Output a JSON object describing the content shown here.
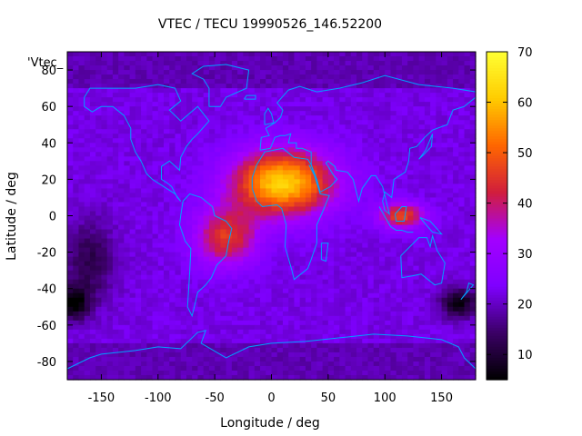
{
  "chart_data": {
    "type": "heatmap",
    "title": "VTEC / TECU 19990526_146.52200",
    "xlabel": "Longitude / deg",
    "ylabel": "Latitude / deg",
    "legend_label": "'Vtec_",
    "xlim": [
      -180,
      180
    ],
    "ylim": [
      -90,
      90
    ],
    "x_ticks": [
      "-150",
      "-100",
      "-50",
      "0",
      "50",
      "100",
      "150"
    ],
    "y_ticks": [
      "-80",
      "-60",
      "-40",
      "-20",
      "0",
      "20",
      "40",
      "60",
      "80"
    ],
    "colorbar": {
      "range": [
        5,
        70
      ],
      "ticks": [
        "10",
        "20",
        "30",
        "40",
        "50",
        "60",
        "70"
      ]
    },
    "grid": false,
    "field": {
      "background_value": 22,
      "features": [
        {
          "name": "equatorial-anomaly-africa",
          "lon": 10,
          "lat": 18,
          "peak_value": 62
        },
        {
          "name": "south-atlantic-enhancement",
          "lon": -40,
          "lat": -12,
          "peak_value": 45
        },
        {
          "name": "asia-pacific-enhancement",
          "lon": 115,
          "lat": 0,
          "peak_value": 48
        },
        {
          "name": "southern-ocean-low-west",
          "lon": -175,
          "lat": -48,
          "peak_value": 5
        },
        {
          "name": "southern-ocean-low-east",
          "lon": 165,
          "lat": -48,
          "peak_value": 6
        },
        {
          "name": "south-pacific-low",
          "lon": -160,
          "lat": -25,
          "peak_value": 12
        }
      ]
    }
  },
  "colors": {
    "palette_stops": [
      "#000000",
      "#3b0066",
      "#7f00ff",
      "#a300ff",
      "#d11e3c",
      "#ff6600",
      "#ffcc00",
      "#ffff33"
    ],
    "coastline": "#00a0ff",
    "frame": "#000000"
  }
}
